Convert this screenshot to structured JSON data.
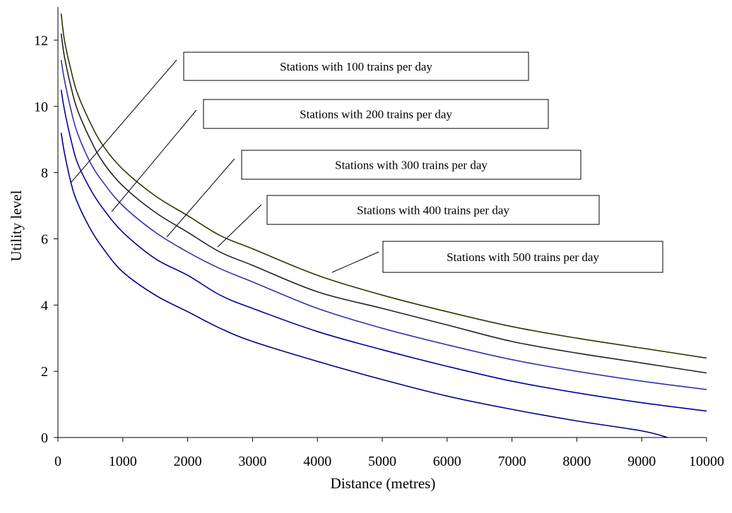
{
  "chart_data": {
    "type": "line",
    "xlabel": "Distance (metres)",
    "ylabel": "Utility level",
    "xlim": [
      0,
      10000
    ],
    "ylim": [
      0,
      13
    ],
    "xticks": [
      "0",
      "1000",
      "2000",
      "3000",
      "4000",
      "5000",
      "6000",
      "7000",
      "8000",
      "9000",
      "10000"
    ],
    "yticks": [
      "0",
      "2",
      "4",
      "6",
      "8",
      "10",
      "12"
    ],
    "grid": false,
    "x": [
      50,
      100,
      200,
      300,
      500,
      700,
      1000,
      1500,
      2000,
      2500,
      3000,
      4000,
      5000,
      6000,
      7000,
      8000,
      9000,
      10000
    ],
    "series": [
      {
        "name": "Stations with 100 trains per day",
        "color": "#000080",
        "values": [
          9.2,
          8.6,
          7.7,
          7.1,
          6.3,
          5.7,
          5.0,
          4.3,
          3.8,
          3.3,
          2.9,
          2.3,
          1.75,
          1.25,
          0.85,
          0.5,
          0.2,
          null
        ]
      },
      {
        "name": "Stations with 200 trains per day",
        "color": "#000099",
        "values": [
          10.5,
          9.9,
          9.0,
          8.3,
          7.5,
          6.9,
          6.2,
          5.4,
          4.9,
          4.3,
          3.9,
          3.2,
          2.65,
          2.15,
          1.7,
          1.35,
          1.05,
          0.8
        ]
      },
      {
        "name": "Stations with 300 trains per day",
        "color": "#3333aa",
        "values": [
          11.4,
          10.8,
          9.9,
          9.2,
          8.3,
          7.7,
          7.0,
          6.2,
          5.6,
          5.1,
          4.7,
          3.9,
          3.3,
          2.8,
          2.35,
          2.0,
          1.7,
          1.45
        ]
      },
      {
        "name": "Stations with 400 trains per day",
        "color": "#222222",
        "values": [
          12.2,
          11.5,
          10.6,
          9.9,
          9.0,
          8.3,
          7.6,
          6.8,
          6.2,
          5.6,
          5.2,
          4.4,
          3.9,
          3.4,
          2.9,
          2.55,
          2.25,
          1.95
        ]
      },
      {
        "name": "Stations with 500 trains per day",
        "color": "#333300",
        "values": [
          12.8,
          12.0,
          11.1,
          10.4,
          9.5,
          8.8,
          8.1,
          7.3,
          6.7,
          6.1,
          5.7,
          4.9,
          4.3,
          3.8,
          3.35,
          3.0,
          2.7,
          2.4
        ]
      }
    ]
  }
}
